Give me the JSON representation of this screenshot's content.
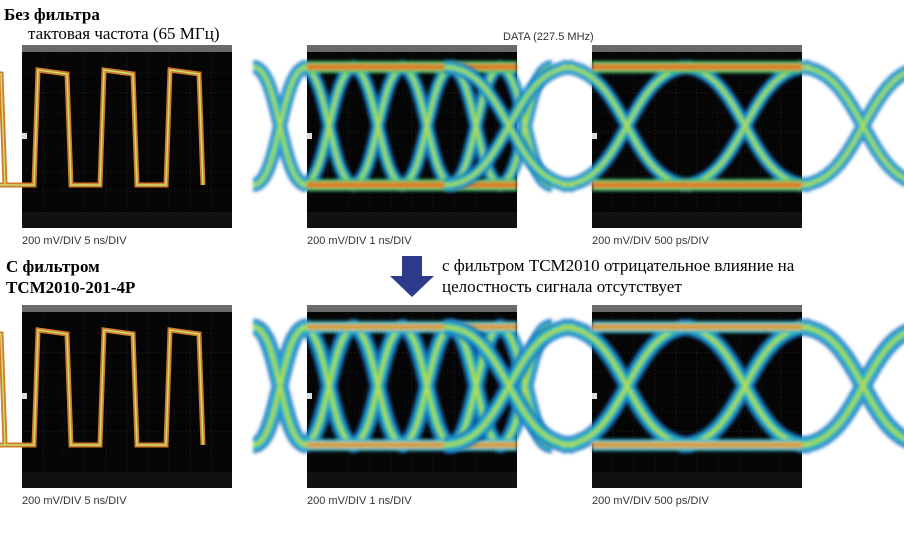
{
  "row1": {
    "label": "Без фильтра",
    "sublabel": "тактовая частота (65 МГц)",
    "data_label": "DATA  (227.5 MHz)",
    "captions": [
      "200 mV/DIV   5 ns/DIV",
      "200 mV/DIV   1 ns/DIV",
      "200 mV/DIV   500 ps/DIV"
    ]
  },
  "row2": {
    "label_lines": [
      "С фильтром",
      "TCM2010-201-4P"
    ],
    "note_lines": [
      "с фильтром TCM2010 отрицательное влияние на",
      "целостность сигнала  отсутствует"
    ],
    "captions": [
      "200 mV/DIV   5 ns/DIV",
      "200 mV/DIV   1 ns/DIV",
      "200 mV/DIV   500 ps/DIV"
    ]
  }
}
